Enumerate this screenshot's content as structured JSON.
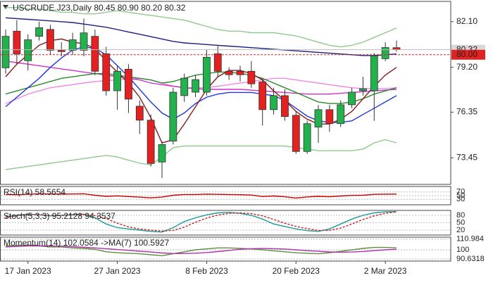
{
  "chart_data": [
    {
      "type": "candlestick",
      "title": "USCRUDE.J23,Daily  80.45 80.90 80.20 80.32",
      "categories": [
        null,
        null,
        "17 Jan 2023",
        null,
        null,
        null,
        null,
        null,
        null,
        null,
        "27 Jan 2023",
        null,
        null,
        null,
        null,
        null,
        null,
        null,
        "8 Feb 2023",
        null,
        null,
        null,
        null,
        null,
        null,
        null,
        "20 Feb 2023",
        null,
        null,
        null,
        null,
        null,
        null,
        null,
        "2 Mar 2023",
        null
      ],
      "open": [
        79.17,
        81.5,
        79.62,
        81.17,
        81.61,
        80.3,
        80.28,
        80.28,
        81.17,
        80.06,
        77.71,
        79.08,
        76.73,
        75.84,
        73.18,
        74.51,
        77.4,
        77.62,
        77.62,
        80.06,
        78.95,
        78.95,
        78.95,
        78.28,
        76.51,
        77.4,
        76.15,
        73.85,
        75.4,
        76.51,
        75.62,
        76.82,
        77.71,
        77.71,
        79.75,
        80.45
      ],
      "high": [
        81.6,
        82.2,
        81.3,
        82.1,
        81.9,
        80.8,
        81.4,
        82.3,
        81.6,
        80.5,
        79.3,
        79.4,
        77.1,
        76.2,
        74.5,
        77.9,
        78.8,
        78.7,
        80.3,
        80.6,
        79.2,
        79.3,
        79.6,
        78.5,
        77.9,
        77.8,
        76.4,
        75.8,
        76.8,
        76.8,
        77.1,
        77.9,
        78.6,
        80.1,
        80.8,
        80.9
      ],
      "low": [
        78.8,
        79.4,
        79.0,
        80.9,
        80.0,
        79.9,
        80.0,
        79.9,
        78.7,
        77.4,
        76.5,
        76.3,
        74.96,
        72.9,
        72.16,
        74.3,
        77.0,
        77.3,
        77.4,
        78.6,
        78.4,
        78.3,
        77.9,
        75.5,
        76.2,
        75.8,
        73.7,
        73.7,
        74.4,
        75.1,
        75.4,
        76.6,
        77.4,
        75.8,
        79.6,
        80.2
      ],
      "close": [
        81.17,
        80.06,
        80.95,
        81.72,
        80.28,
        80.2,
        80.95,
        81.39,
        78.95,
        77.71,
        78.95,
        77.18,
        75.84,
        73.09,
        74.29,
        77.62,
        78.51,
        78.42,
        79.84,
        78.95,
        78.73,
        78.73,
        78.15,
        76.51,
        77.4,
        76.07,
        73.85,
        75.62,
        76.51,
        75.62,
        76.82,
        77.62,
        77.84,
        79.93,
        80.46,
        80.32
      ],
      "up_color": "#22b14c",
      "down_color": "#e32121",
      "series": [
        {
          "color": "#8fca8f",
          "values": [
            83.0,
            83.0,
            82.9,
            82.9,
            82.8,
            82.7,
            82.7,
            82.6,
            82.6,
            82.7,
            82.8,
            82.7,
            82.6,
            82.5,
            82.4,
            82.3,
            82.2,
            82.0,
            81.8,
            81.6,
            81.5,
            81.5,
            81.4,
            81.4,
            81.4,
            81.3,
            81.2,
            81.0,
            80.8,
            80.6,
            80.5,
            80.6,
            80.8,
            81.1,
            81.4,
            81.7
          ]
        },
        {
          "color": "#8fca8f",
          "values": [
            72.7,
            72.8,
            72.9,
            73.0,
            73.1,
            73.2,
            73.3,
            73.4,
            73.5,
            73.6,
            73.5,
            73.3,
            73.1,
            73.0,
            73.5,
            74.1,
            74.2,
            74.2,
            74.2,
            74.2,
            74.2,
            74.2,
            74.2,
            74.2,
            74.2,
            74.2,
            74.1,
            74.0,
            73.9,
            73.9,
            73.9,
            73.9,
            74.0,
            74.4,
            74.6,
            74.4
          ]
        },
        {
          "color": "#ee88ee",
          "values": [
            76.9,
            77.2,
            77.5,
            77.7,
            77.9,
            78.0,
            78.1,
            78.2,
            78.3,
            78.35,
            78.4,
            78.45,
            78.5,
            78.4,
            78.2,
            78.0,
            77.9,
            77.9,
            77.9,
            78.0,
            78.1,
            78.2,
            78.3,
            78.4,
            78.5,
            78.5,
            78.4,
            78.3,
            78.2,
            78.1,
            78.0,
            77.9,
            77.85,
            77.85,
            77.85,
            77.9
          ]
        },
        {
          "color": "#cc33cc",
          "values": [
            79.6,
            79.5,
            79.4,
            79.3,
            79.2,
            79.1,
            79.0,
            78.9,
            78.8,
            78.7,
            78.6,
            78.5,
            78.4,
            78.2,
            78.1,
            78.0,
            77.9,
            77.85,
            77.8,
            77.8,
            77.8,
            77.8,
            77.75,
            77.7,
            77.65,
            77.6,
            77.55,
            77.5,
            77.5,
            77.5,
            77.55,
            77.6,
            77.65,
            77.7,
            77.75,
            77.8
          ]
        },
        {
          "color": "#2a8a2a",
          "values": [
            77.5,
            77.7,
            77.9,
            78.1,
            78.3,
            78.5,
            78.6,
            78.7,
            78.8,
            78.8,
            78.7,
            78.6,
            78.5,
            78.4,
            78.2,
            78.3,
            78.5,
            78.7,
            78.8,
            78.9,
            78.9,
            78.8,
            78.7,
            78.5,
            78.2,
            77.9,
            77.6,
            77.3,
            77.0,
            76.9,
            76.9,
            77.0,
            77.2,
            77.5,
            77.7,
            77.9
          ]
        },
        {
          "color": "#1c1c80",
          "values": [
            82.35,
            82.3,
            82.25,
            82.2,
            82.15,
            82.1,
            82.05,
            81.95,
            81.85,
            81.75,
            81.6,
            81.45,
            81.3,
            81.15,
            81.0,
            80.85,
            80.75,
            80.7,
            80.65,
            80.6,
            80.55,
            80.5,
            80.45,
            80.4,
            80.35,
            80.3,
            80.25,
            80.2,
            80.15,
            80.1,
            80.05,
            80.0,
            79.95,
            79.95,
            80.0,
            80.05
          ]
        },
        {
          "color": "#2038e0",
          "values": [
            76.7,
            77.3,
            77.9,
            78.5,
            79.2,
            79.8,
            80.3,
            80.5,
            80.4,
            80.0,
            79.3,
            78.6,
            77.8,
            77.0,
            76.3,
            75.9,
            76.3,
            76.9,
            77.3,
            77.5,
            77.6,
            77.6,
            77.6,
            77.5,
            77.4,
            77.1,
            76.6,
            76.1,
            75.8,
            75.7,
            75.7,
            75.8,
            76.2,
            76.6,
            77.0,
            77.4
          ]
        },
        {
          "color": "#8b1a1a",
          "values": [
            78.6,
            79.4,
            80.0,
            80.6,
            80.9,
            81.0,
            80.8,
            80.7,
            80.4,
            79.6,
            78.9,
            78.2,
            77.3,
            76.0,
            74.4,
            74.6,
            75.6,
            76.7,
            77.8,
            78.6,
            79.0,
            79.0,
            78.8,
            78.4,
            77.7,
            77.1,
            76.4,
            75.9,
            75.6,
            75.6,
            75.9,
            76.4,
            77.2,
            78.0,
            78.7,
            79.2
          ]
        }
      ],
      "ylim": [
        71.76,
        83.39
      ],
      "yticks": [
        {
          "value": 82.1,
          "label": "82.10"
        },
        {
          "value": 79.2,
          "label": "79.20"
        },
        76.35,
        73.45
      ],
      "hlines": [
        {
          "value": 80,
          "label": "80.00",
          "color": "#e32121"
        }
      ],
      "last_label": {
        "value": 80.32,
        "label": "80.32"
      },
      "grid": false
    },
    {
      "type": "line",
      "title": "RSI(14) 58.5654",
      "series": [
        {
          "color": "#cc0000",
          "values": [
            56,
            55,
            57,
            60,
            59,
            58,
            59,
            60,
            52,
            46,
            49,
            45,
            42,
            38,
            42,
            52,
            56,
            56,
            58,
            57,
            56,
            55,
            53,
            45,
            48,
            44,
            37,
            43,
            46,
            44,
            48,
            51,
            52,
            57,
            58,
            58.5654
          ]
        }
      ],
      "ylim": [
        0,
        100
      ],
      "yticks": [
        70,
        50,
        30
      ],
      "grid": true
    },
    {
      "type": "line",
      "title": "Stoch(5,3,3) 95.2128 94.3537",
      "series": [
        {
          "color": "#1a9a9a",
          "values": [
            75,
            80,
            85,
            82,
            78,
            80,
            83,
            85,
            70,
            45,
            30,
            25,
            20,
            15,
            12,
            30,
            55,
            70,
            82,
            90,
            92,
            88,
            80,
            65,
            45,
            35,
            25,
            18,
            15,
            25,
            45,
            65,
            80,
            90,
            94,
            95.2128
          ]
        },
        {
          "color": "#cc2222",
          "dash": true,
          "values": [
            72,
            78,
            82,
            83,
            80,
            79,
            81,
            83,
            79,
            67,
            48,
            33,
            25,
            20,
            16,
            19,
            32,
            52,
            69,
            81,
            88,
            90,
            87,
            78,
            63,
            48,
            35,
            26,
            19,
            19,
            28,
            45,
            63,
            78,
            88,
            94.3537
          ]
        }
      ],
      "ylim": [
        0,
        100
      ],
      "yticks": [
        80,
        50,
        20
      ],
      "grid": true
    },
    {
      "type": "line",
      "title": "Momentum(14) 102.0584 ->MA(7) 100.5927",
      "series": [
        {
          "color": "#5f8f3f",
          "values": [
            104,
            104.5,
            105,
            104,
            103,
            103,
            102,
            101.5,
            100.5,
            98,
            97,
            96.5,
            96,
            95,
            94,
            96,
            98,
            100,
            101,
            102,
            102,
            101.5,
            101,
            100,
            99,
            98,
            97,
            96.5,
            96,
            97,
            98.5,
            100,
            101.5,
            102.5,
            102.5,
            102.0584
          ]
        },
        {
          "color": "#b030b0",
          "values": [
            103,
            103.5,
            104,
            104,
            104,
            103.8,
            103.3,
            102.7,
            102,
            101.2,
            100.3,
            99.5,
            98.6,
            97.8,
            96.8,
            96.2,
            96.3,
            96.6,
            97.2,
            98.2,
            99.4,
            100.5,
            101.2,
            101.4,
            101.2,
            100.8,
            100.0,
            99.2,
            98.5,
            97.9,
            97.6,
            97.8,
            98.3,
            99.2,
            100,
            100.5927
          ]
        }
      ],
      "ylim": [
        88.5,
        113
      ],
      "yticks": [
        110.984,
        100,
        90.6318
      ],
      "grid": true
    }
  ]
}
